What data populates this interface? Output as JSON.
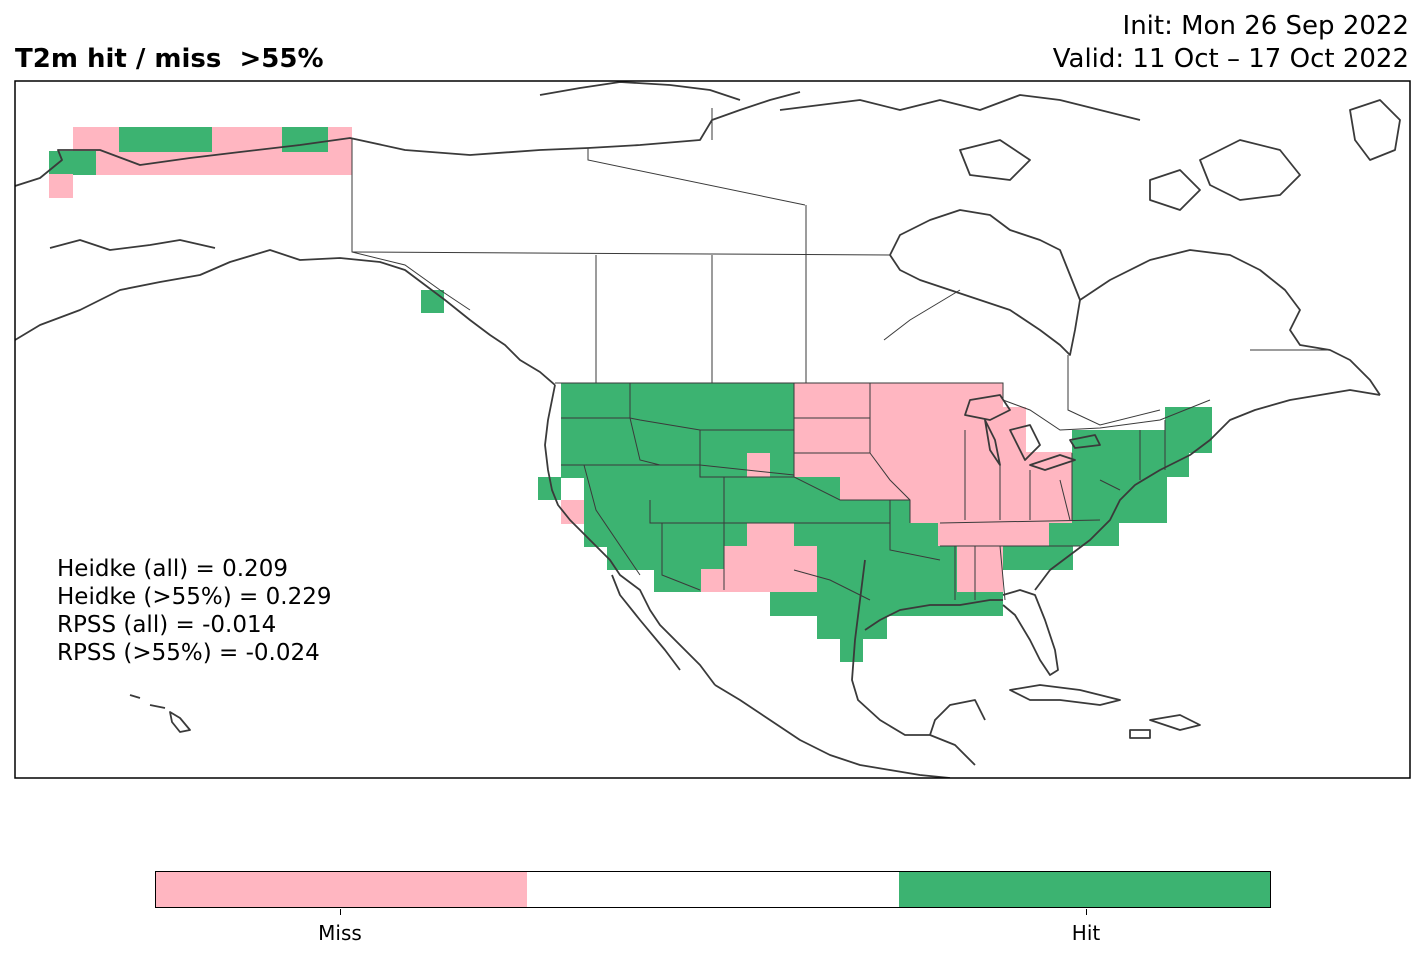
{
  "title": "T2m hit / miss  >55%",
  "init_line": "Init: Mon 26 Sep 2022",
  "valid_line": "Valid: 11 Oct – 17 Oct 2022",
  "stats": [
    "Heidke (all) = 0.209",
    "Heidke (>55%) = 0.229",
    "RPSS (all) = -0.014",
    "RPSS (>55%) = -0.024"
  ],
  "legend": {
    "miss_label": "Miss",
    "hit_label": "Hit",
    "miss_color": "#ffb6c1",
    "neutral_color": "#ffffff",
    "hit_color": "#3cb371"
  }
}
